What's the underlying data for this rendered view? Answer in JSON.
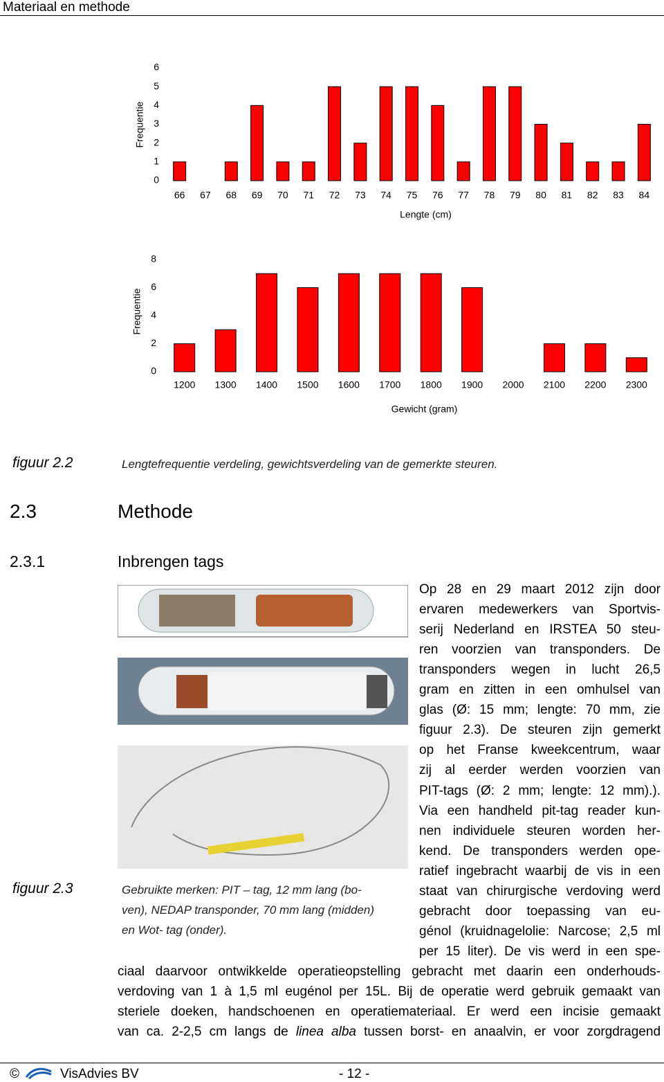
{
  "header": {
    "title": "Materiaal en methode"
  },
  "chart_data": [
    {
      "type": "bar",
      "categories": [
        "66",
        "67",
        "68",
        "69",
        "70",
        "71",
        "72",
        "73",
        "74",
        "75",
        "76",
        "77",
        "78",
        "79",
        "80",
        "81",
        "82",
        "83",
        "84"
      ],
      "values": [
        1,
        0,
        1,
        4,
        1,
        1,
        5,
        2,
        5,
        5,
        4,
        1,
        5,
        5,
        3,
        2,
        1,
        1,
        3
      ],
      "color": "#ff0000",
      "ylim": [
        0,
        6
      ],
      "yticks": [
        0,
        1,
        2,
        3,
        4,
        5,
        6
      ],
      "grid": false,
      "x_label": "Lengte (cm)",
      "y_label": "Frequentie"
    },
    {
      "type": "bar",
      "categories": [
        "1200",
        "1300",
        "1400",
        "1500",
        "1600",
        "1700",
        "1800",
        "1900",
        "2000",
        "2100",
        "2200",
        "2300"
      ],
      "values": [
        2,
        3,
        7,
        6,
        7,
        7,
        7,
        6,
        0,
        2,
        2,
        1
      ],
      "color": "#ff0000",
      "ylim": [
        0,
        8
      ],
      "yticks": [
        0,
        2,
        4,
        6,
        8
      ],
      "grid": false,
      "x_label": "Gewicht (gram)",
      "y_label": "Frequentie"
    }
  ],
  "figure_2_2": {
    "label": "figuur 2.2",
    "caption": "Lengtefrequentie verdeling, gewichtsverdeling van de gemerkte steuren."
  },
  "section": {
    "number": "2.3",
    "title": "Methode"
  },
  "subsection": {
    "number": "2.3.1",
    "title": "Inbrengen tags"
  },
  "figure_2_3": {
    "label": "figuur 2.3",
    "caption_lines": [
      "Gebruikte merken: PIT – tag, 12 mm lang (bo-",
      "ven), NEDAP transponder, 70 mm lang (midden)",
      "en Wot- tag (onder)."
    ]
  },
  "body": {
    "column_lines": [
      "Op 28 en 29 maart 2012 zijn door",
      "ervaren medewerkers van Sportvis-",
      "serij Nederland en IRSTEA 50 steu-",
      "ren voorzien van transponders. De",
      "transponders wegen in lucht 26,5",
      "gram en zitten in een omhulsel van",
      "glas (Ø: 15 mm; lengte: 70 mm, zie",
      "figuur 2.3). De steuren zijn gemerkt",
      "op het Franse kweekcentrum, waar",
      "zij al eerder werden voorzien van",
      "PIT-tags (Ø: 2 mm; lengte: 12 mm).).",
      "Via een handheld pit-tag reader kun-",
      "nen individuele steuren worden her-",
      "kend. De transponders werden ope-",
      "ratief ingebracht waarbij de vis in een",
      "staat van chirurgische verdoving werd",
      "gebracht door toepassing van eu-",
      "génol (kruidnagelolie: Narcose; 2,5 ml",
      "per 15 liter). De vis werd in een spe-"
    ],
    "full_lines": [
      "ciaal daarvoor ontwikkelde operatieopstelling gebracht met daarin een onderhouds-",
      "verdoving van 1 à 1,5 ml eugénol per 15L. Bij de operatie werd gebruik gemaakt van",
      "steriele doeken, handschoenen en operatiemateriaal. Er werd een incisie gemaakt"
    ],
    "last_line": [
      "van ca. 2-2,5 cm langs de ",
      "linea alba",
      " tussen borst- en anaalvin, er voor zorgdragend"
    ]
  },
  "footer": {
    "copyright": "©",
    "company": "VisAdvies BV",
    "page": "- 12 -"
  }
}
